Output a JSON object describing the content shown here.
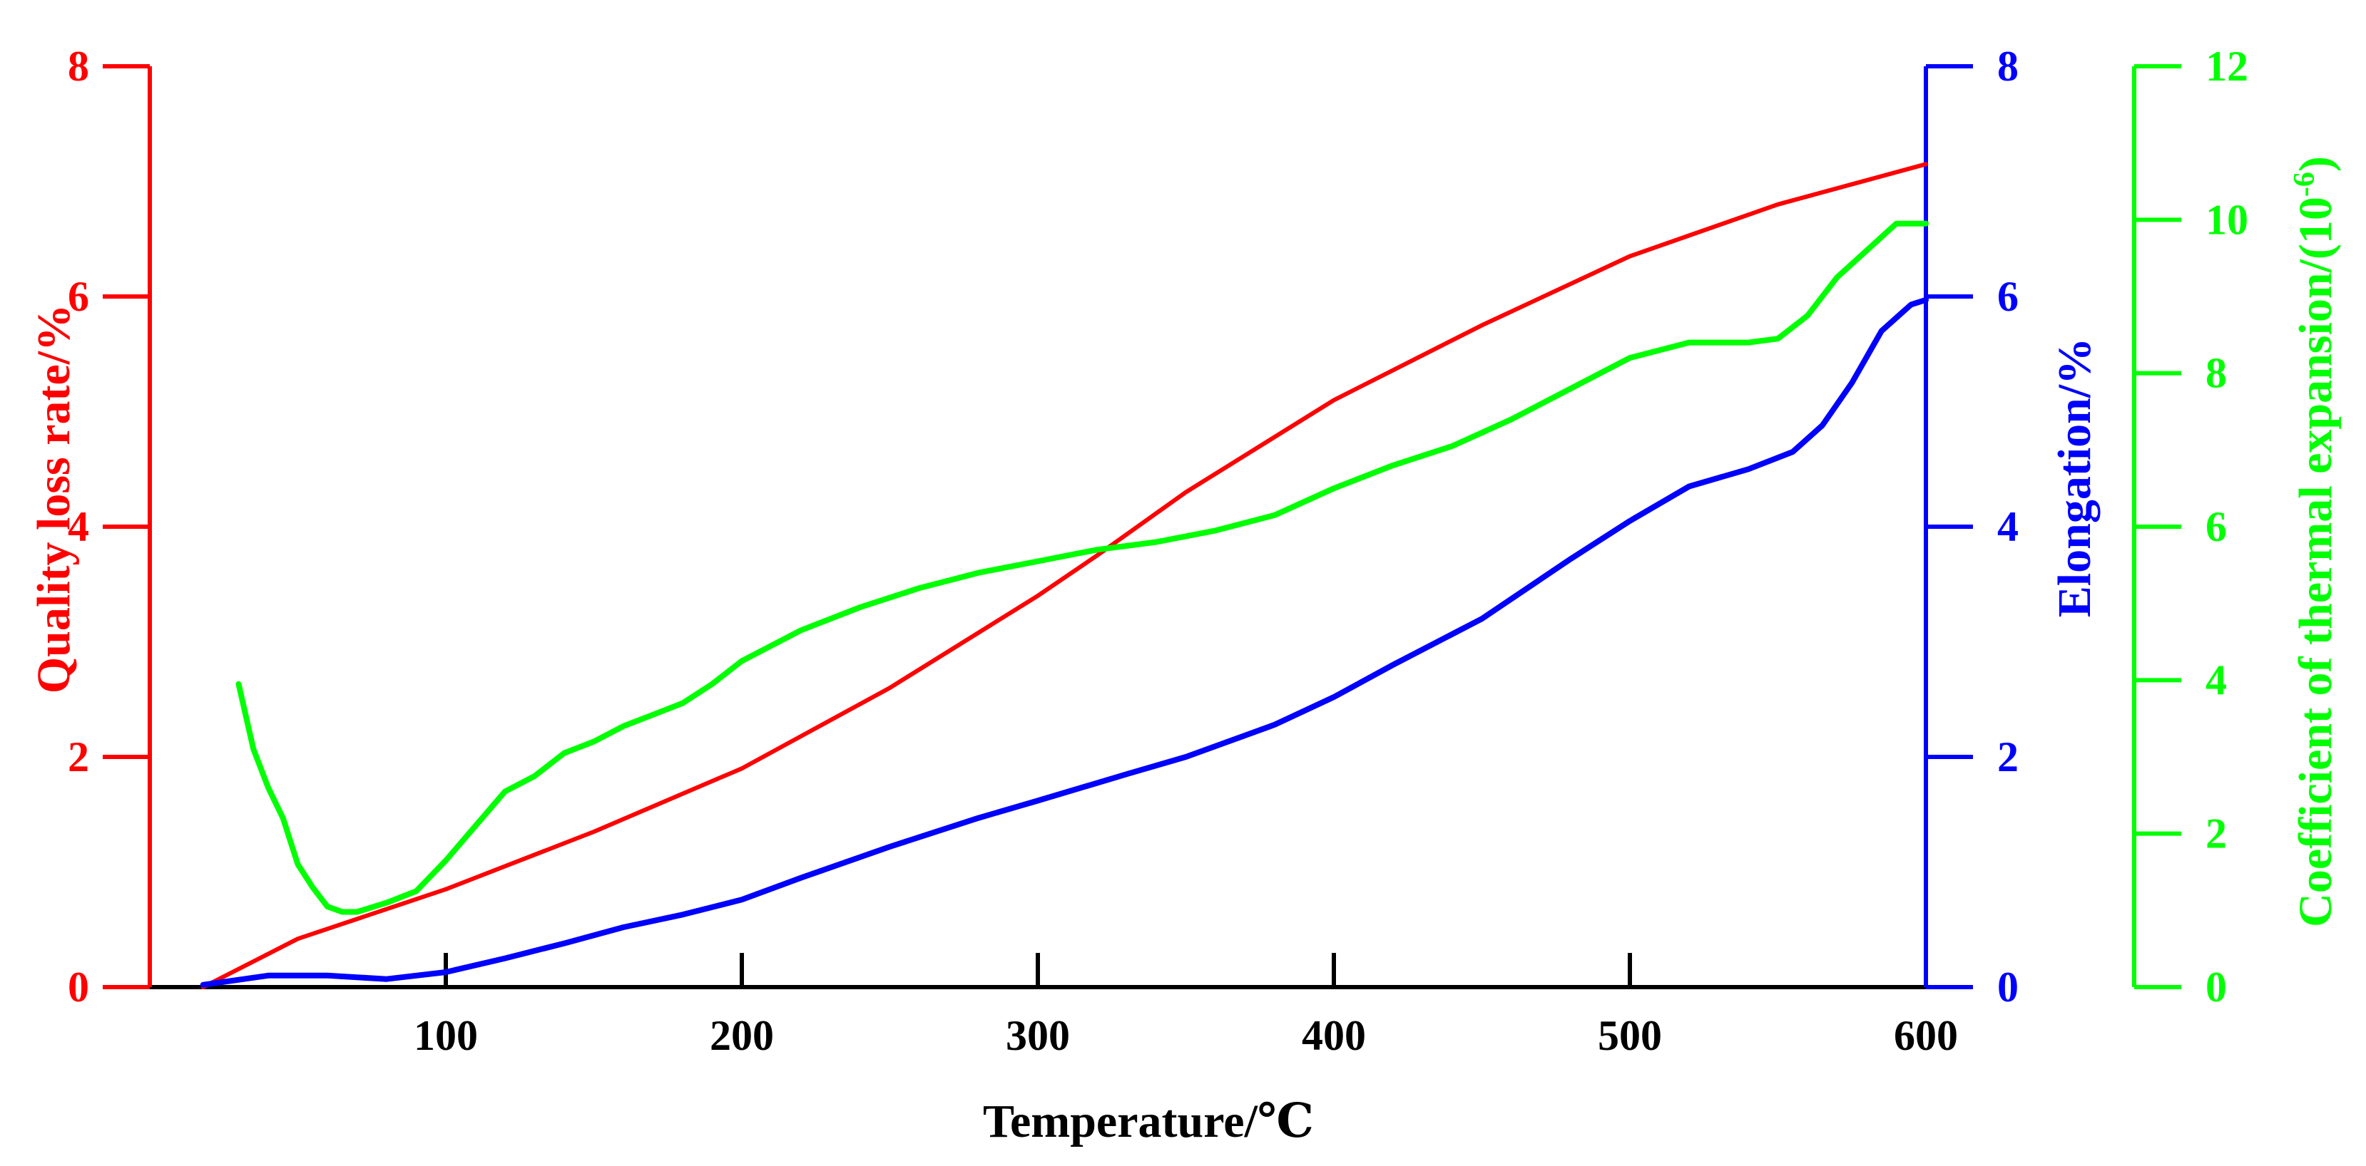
{
  "chart_data": {
    "type": "line",
    "xlabel": "Temperature/℃",
    "xlim": [
      0,
      600
    ],
    "xticks": [
      100,
      200,
      300,
      400,
      500,
      600
    ],
    "grid": false,
    "axes": {
      "left": {
        "label": "Quality loss rate/%",
        "ylim": [
          0,
          8
        ],
        "ticks": [
          0,
          2,
          4,
          6,
          8
        ],
        "color": "#ff0000"
      },
      "right1": {
        "label": "Elongation/%",
        "ylim": [
          0,
          8
        ],
        "ticks": [
          0,
          2,
          4,
          6,
          8
        ],
        "color": "#0000ff"
      },
      "right2": {
        "label": "Coefficient of thermal expansion/(10",
        "label_sup": "-6",
        "label_tail": ")",
        "ylim": [
          0,
          12
        ],
        "ticks": [
          0,
          2,
          4,
          6,
          8,
          10,
          12
        ],
        "color": "#00ff00"
      }
    },
    "series": [
      {
        "axis": "left",
        "color": "#ff0000",
        "x": [
          18,
          50,
          100,
          150,
          200,
          250,
          300,
          320,
          350,
          400,
          450,
          500,
          550,
          600
        ],
        "y": [
          0,
          0.42,
          0.85,
          1.35,
          1.9,
          2.6,
          3.4,
          3.75,
          4.3,
          5.1,
          5.75,
          6.35,
          6.8,
          7.15
        ]
      },
      {
        "axis": "right1",
        "color": "#0000ff",
        "x": [
          18,
          40,
          60,
          80,
          100,
          120,
          140,
          160,
          180,
          200,
          220,
          250,
          280,
          300,
          330,
          350,
          380,
          400,
          420,
          450,
          480,
          500,
          520,
          540,
          555,
          565,
          575,
          585,
          595,
          600
        ],
        "y": [
          0.02,
          0.1,
          0.1,
          0.07,
          0.13,
          0.25,
          0.38,
          0.52,
          0.63,
          0.76,
          0.95,
          1.22,
          1.47,
          1.62,
          1.85,
          2.0,
          2.28,
          2.52,
          2.8,
          3.2,
          3.72,
          4.05,
          4.35,
          4.5,
          4.65,
          4.88,
          5.25,
          5.7,
          5.93,
          5.97
        ]
      },
      {
        "axis": "right2",
        "color": "#00ff00",
        "x": [
          30,
          35,
          40,
          45,
          50,
          55,
          60,
          65,
          70,
          80,
          90,
          100,
          110,
          120,
          130,
          140,
          150,
          160,
          170,
          180,
          190,
          200,
          220,
          240,
          260,
          280,
          300,
          320,
          340,
          360,
          380,
          400,
          420,
          440,
          460,
          480,
          500,
          520,
          540,
          550,
          560,
          570,
          580,
          590,
          600
        ],
        "y": [
          3.95,
          3.1,
          2.6,
          2.2,
          1.6,
          1.3,
          1.05,
          0.98,
          0.98,
          1.1,
          1.25,
          1.65,
          2.1,
          2.55,
          2.75,
          3.05,
          3.2,
          3.4,
          3.55,
          3.7,
          3.95,
          4.25,
          4.65,
          4.95,
          5.2,
          5.4,
          5.55,
          5.7,
          5.8,
          5.95,
          6.15,
          6.5,
          6.8,
          7.05,
          7.4,
          7.8,
          8.2,
          8.4,
          8.4,
          8.45,
          8.75,
          9.25,
          9.6,
          9.95,
          9.95
        ]
      }
    ]
  }
}
